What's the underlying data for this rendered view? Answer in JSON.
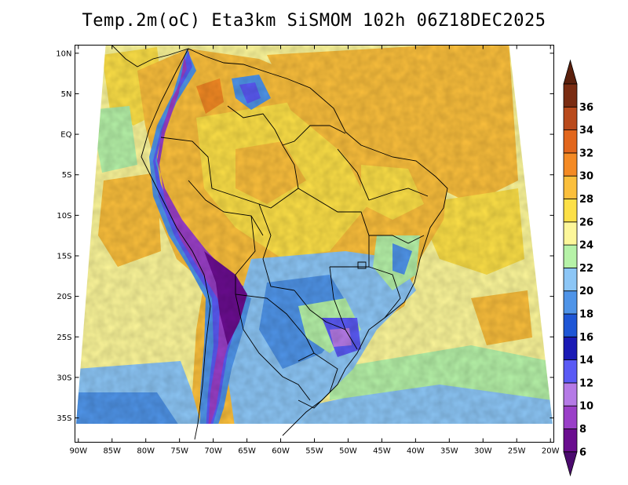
{
  "title": "Temp.2m(oC) Eta3km SiSMOM 102h 06Z18DEC2025",
  "map": {
    "lat_ticks": [
      "10N",
      "5N",
      "EQ",
      "5S",
      "10S",
      "15S",
      "20S",
      "25S",
      "30S",
      "35S"
    ],
    "lon_ticks": [
      "90W",
      "85W",
      "80W",
      "75W",
      "70W",
      "65W",
      "60W",
      "55W",
      "50W",
      "45W",
      "40W",
      "35W",
      "30W",
      "25W",
      "20W"
    ],
    "lat_range": [
      -38,
      11
    ],
    "lon_range": [
      -90.5,
      -19.5
    ]
  },
  "colorbar": {
    "labels": [
      "6",
      "8",
      "10",
      "12",
      "14",
      "16",
      "18",
      "20",
      "22",
      "24",
      "26",
      "28",
      "30",
      "32",
      "34",
      "36"
    ],
    "colors": [
      "#6a0d8f",
      "#9a3fc8",
      "#b57ae6",
      "#5a5af5",
      "#1a1ab5",
      "#1e56d6",
      "#4f94e8",
      "#8cc6f6",
      "#b6f2a8",
      "#fdf79a",
      "#fde047",
      "#fbbf3c",
      "#f48a24",
      "#e2661c",
      "#b94a1c",
      "#7a2c12"
    ],
    "under_color": "#4b0a6e",
    "over_color": "#5b200d"
  }
}
